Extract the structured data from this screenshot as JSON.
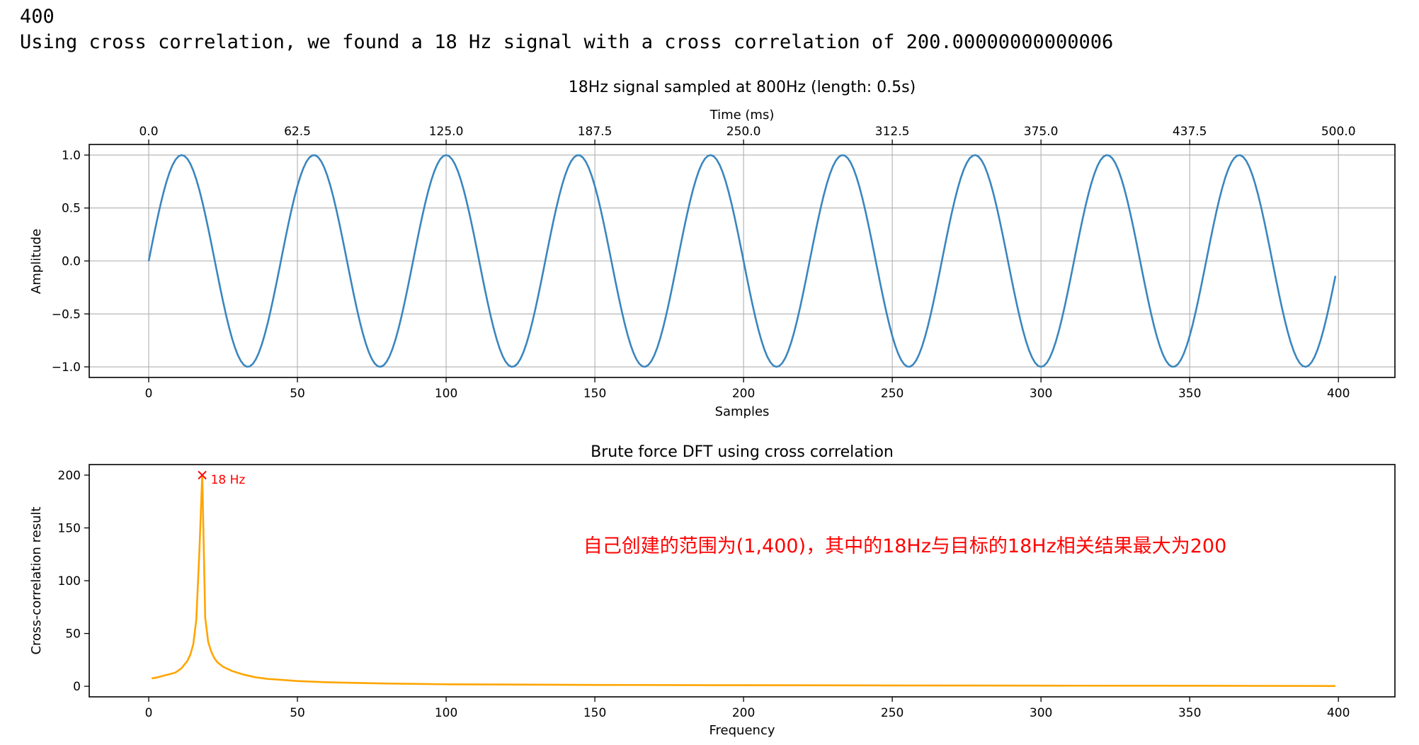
{
  "output": {
    "line1": "400",
    "line2": "Using cross correlation, we found a 18 Hz signal with a cross correlation of 200.00000000000006"
  },
  "colors": {
    "signal": "#3a86be",
    "dft": "#ffa500",
    "peak": "#ff0000",
    "annotation": "#ff0000",
    "grid": "#b0b0b0"
  },
  "chart_data": [
    {
      "type": "line",
      "title": "18Hz signal sampled at 800Hz (length: 0.5s)",
      "xlabel": "Samples",
      "ylabel": "Amplitude",
      "top_xlabel": "Time (ms)",
      "signal": {
        "frequency_hz": 18,
        "sample_rate_hz": 800,
        "num_samples": 400,
        "amplitude": 1
      },
      "xlim": [
        -20,
        419
      ],
      "ylim": [
        -1.1,
        1.1
      ],
      "grid": true,
      "x_ticks": [
        "0",
        "50",
        "100",
        "150",
        "200",
        "250",
        "300",
        "350",
        "400"
      ],
      "y_ticks": [
        "1.0",
        "0.5",
        "0.0",
        "−0.5",
        "−1.0"
      ],
      "top_ticks": [
        "0.0",
        "62.5",
        "125.0",
        "187.5",
        "250.0",
        "312.5",
        "375.0",
        "437.5",
        "500.0"
      ]
    },
    {
      "type": "line",
      "title": "Brute force DFT using cross correlation",
      "xlabel": "Frequency",
      "ylabel": "Cross-correlation result",
      "xlim": [
        -20,
        419
      ],
      "ylim": [
        -10,
        210
      ],
      "grid": false,
      "x_ticks": [
        "0",
        "50",
        "100",
        "150",
        "200",
        "250",
        "300",
        "350",
        "400"
      ],
      "y_ticks": [
        "200",
        "150",
        "100",
        "50",
        "0"
      ],
      "series": {
        "x": [
          1,
          3,
          5,
          7,
          9,
          11,
          13,
          14,
          15,
          16,
          17,
          18,
          19,
          20,
          21,
          22,
          23,
          25,
          28,
          32,
          36,
          40,
          50,
          60,
          80,
          100,
          150,
          200,
          250,
          300,
          350,
          399
        ],
        "y": [
          7.5,
          8.5,
          10,
          11.5,
          13,
          17,
          24,
          30,
          40,
          63,
          125,
          200,
          65,
          42,
          33,
          27,
          23,
          18.5,
          14.5,
          11,
          8.5,
          7,
          5,
          3.8,
          2.6,
          1.9,
          1.3,
          1.0,
          0.8,
          0.6,
          0.5,
          0.3
        ]
      },
      "peak": {
        "x": 18,
        "y": 200,
        "label": "18 Hz"
      },
      "annotation": "自己创建的范围为(1,400)，其中的18Hz与目标的18Hz相关结果最大为200"
    }
  ]
}
